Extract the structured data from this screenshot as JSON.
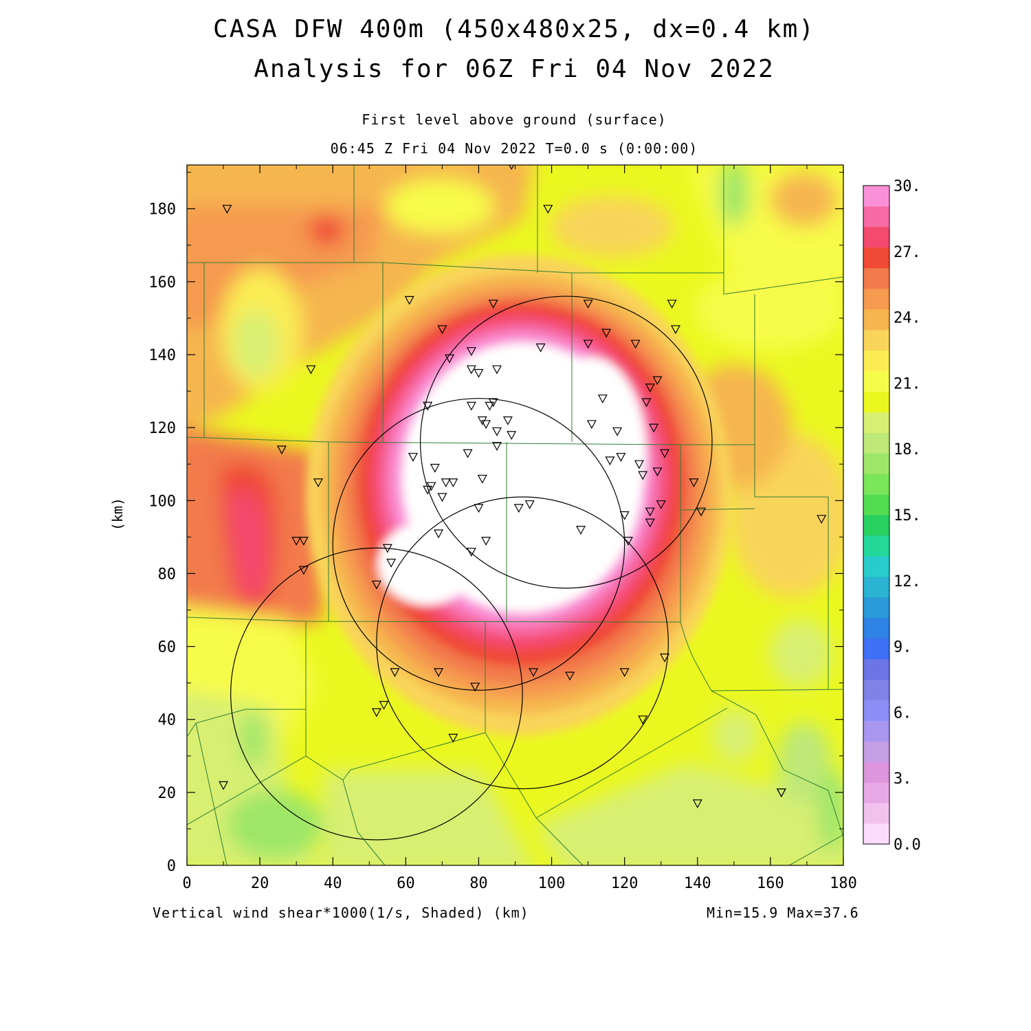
{
  "header": {
    "title_line1": "CASA DFW 400m (450x480x25, dx=0.4 km)",
    "title_line2": "Analysis for 06Z Fri 04 Nov 2022",
    "level_label": "First level above ground (surface)",
    "time_label": "06:45 Z Fri 04 Nov 2022    T=0.0 s (0:00:00)"
  },
  "footer": {
    "field_label": "Vertical wind shear*1000(1/s, Shaded)  (km)",
    "minmax_label": "Min=15.9 Max=37.6"
  },
  "colors": {
    "above_max_fill": "#ffffff",
    "county_lines": "#2e7d32",
    "radar_rings": "#000000"
  },
  "chart_data": {
    "type": "heatmap",
    "title": "CASA DFW 400m (450x480x25, dx=0.4 km)",
    "subtitle": "Analysis for 06Z Fri 04 Nov 2022",
    "xlabel": "(km)",
    "ylabel": "(km)",
    "xlim": [
      0,
      180
    ],
    "ylim": [
      0,
      192
    ],
    "x_ticks": [
      0,
      20,
      40,
      60,
      80,
      100,
      120,
      140,
      160,
      180
    ],
    "y_ticks": [
      0,
      20,
      40,
      60,
      80,
      100,
      120,
      140,
      160,
      180
    ],
    "colorbar": {
      "labels": [
        "0.0",
        "3.",
        "6.",
        "9.",
        "12.",
        "15.",
        "18.",
        "21.",
        "24.",
        "27.",
        "30."
      ],
      "colors": [
        "#fcdcfc",
        "#f2c2ee",
        "#e8a8e6",
        "#dd95de",
        "#c59ee6",
        "#a896f0",
        "#8c8ef5",
        "#7f83e8",
        "#6b75e6",
        "#3f6ff4",
        "#2f82e6",
        "#2a9ad8",
        "#2ab4d2",
        "#28cccc",
        "#24d89a",
        "#28d060",
        "#52dc52",
        "#7ae65a",
        "#9ee668",
        "#bee878",
        "#d8ef72",
        "#ebf81f",
        "#f7fb4a",
        "#faec52",
        "#f9d45a",
        "#f6b54f",
        "#f59a4f",
        "#f27a4b",
        "#f04a37",
        "#f44a6e",
        "#f76aa4",
        "#fa91d8"
      ],
      "position": "right"
    },
    "field": "Vertical wind shear*1000 (1/s)",
    "min": 15.9,
    "max": 37.6,
    "max_region": {
      "center_km": [
        96,
        102
      ],
      "description": "values above 30 (unshaded, white) in central core"
    },
    "radar_rings": [
      {
        "center_km": [
          104,
          116
        ],
        "radius_km": 40
      },
      {
        "center_km": [
          80,
          88
        ],
        "radius_km": 40
      },
      {
        "center_km": [
          92,
          61
        ],
        "radius_km": 40
      },
      {
        "center_km": [
          52,
          47
        ],
        "radius_km": 40
      }
    ],
    "stations_km": [
      [
        11,
        180
      ],
      [
        99,
        180
      ],
      [
        89,
        192
      ],
      [
        61,
        155
      ],
      [
        84,
        154
      ],
      [
        110,
        154
      ],
      [
        133,
        154
      ],
      [
        70,
        147
      ],
      [
        134,
        147
      ],
      [
        115,
        146
      ],
      [
        123,
        143
      ],
      [
        110,
        143
      ],
      [
        78,
        141
      ],
      [
        97,
        142
      ],
      [
        72,
        139
      ],
      [
        78,
        136
      ],
      [
        80,
        135
      ],
      [
        85,
        136
      ],
      [
        129,
        133
      ],
      [
        127,
        131
      ],
      [
        34,
        136
      ],
      [
        66,
        126
      ],
      [
        78,
        126
      ],
      [
        84,
        127
      ],
      [
        83,
        126
      ],
      [
        114,
        128
      ],
      [
        126,
        127
      ],
      [
        81,
        122
      ],
      [
        88,
        122
      ],
      [
        82,
        121
      ],
      [
        85,
        119
      ],
      [
        89,
        118
      ],
      [
        111,
        121
      ],
      [
        118,
        119
      ],
      [
        128,
        120
      ],
      [
        62,
        112
      ],
      [
        77,
        113
      ],
      [
        85,
        115
      ],
      [
        116,
        111
      ],
      [
        119,
        112
      ],
      [
        131,
        113
      ],
      [
        124,
        110
      ],
      [
        26,
        114
      ],
      [
        68,
        109
      ],
      [
        125,
        107
      ],
      [
        129,
        108
      ],
      [
        36,
        105
      ],
      [
        71,
        105
      ],
      [
        73,
        105
      ],
      [
        81,
        106
      ],
      [
        67,
        104
      ],
      [
        66,
        103
      ],
      [
        70,
        101
      ],
      [
        139,
        105
      ],
      [
        94,
        99
      ],
      [
        91,
        98
      ],
      [
        80,
        98
      ],
      [
        127,
        97
      ],
      [
        120,
        96
      ],
      [
        130,
        99
      ],
      [
        141,
        97
      ],
      [
        127,
        94
      ],
      [
        174,
        95
      ],
      [
        108,
        92
      ],
      [
        69,
        91
      ],
      [
        30,
        89
      ],
      [
        32,
        89
      ],
      [
        82,
        89
      ],
      [
        121,
        89
      ],
      [
        55,
        87
      ],
      [
        78,
        86
      ],
      [
        56,
        83
      ],
      [
        32,
        81
      ],
      [
        52,
        77
      ],
      [
        57,
        53
      ],
      [
        69,
        53
      ],
      [
        95,
        53
      ],
      [
        105,
        52
      ],
      [
        120,
        53
      ],
      [
        131,
        57
      ],
      [
        79,
        49
      ],
      [
        54,
        44
      ],
      [
        52,
        42
      ],
      [
        125,
        40
      ],
      [
        73,
        35
      ],
      [
        10,
        22
      ],
      [
        163,
        20
      ],
      [
        163,
        20
      ],
      [
        140,
        17
      ]
    ]
  }
}
